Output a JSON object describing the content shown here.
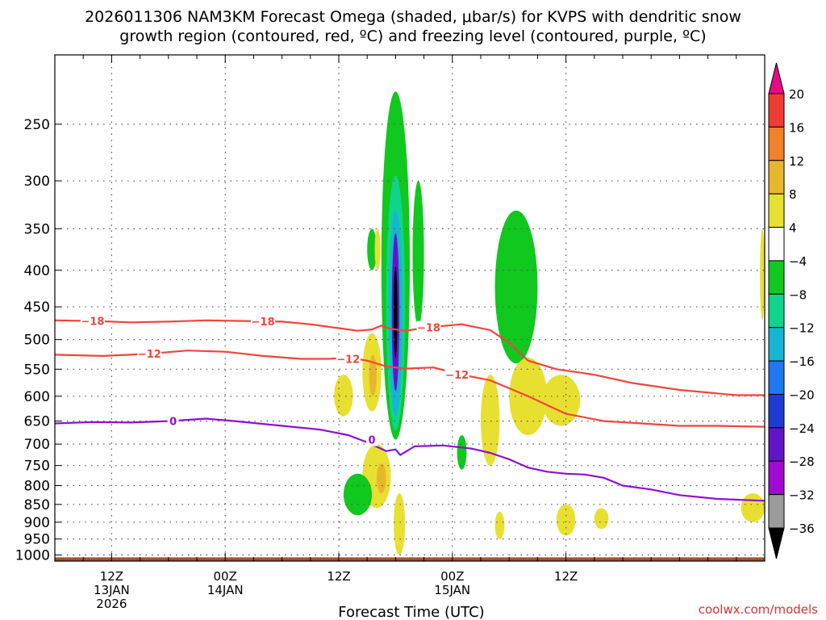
{
  "chart_data": {
    "type": "heatmap",
    "title_line1": "2026011306 NAM3KM Forecast Omega (shaded, μbar/s) for KVPS with dendritic snow",
    "title_line2": "growth region (contoured, red, ºC) and freezing level (contoured, purple, ºC)",
    "xlabel": "Forecast Time (UTC)",
    "credit": "coolwx.com/models",
    "y_axis": {
      "scale": "log-pressure",
      "reversed": true,
      "ylim": [
        1020,
        200
      ],
      "ticks": [
        "250",
        "300",
        "350",
        "400",
        "450",
        "500",
        "550",
        "600",
        "650",
        "700",
        "750",
        "800",
        "850",
        "900",
        "950",
        "1000"
      ],
      "tick_values": [
        250,
        300,
        350,
        400,
        450,
        500,
        550,
        600,
        650,
        700,
        750,
        800,
        850,
        900,
        950,
        1000
      ]
    },
    "x_axis": {
      "xlim_hours": [
        0,
        75
      ],
      "ticks": [
        {
          "hour": 6,
          "lines": [
            "12Z",
            "13JAN",
            "2026"
          ]
        },
        {
          "hour": 18,
          "lines": [
            "00Z",
            "14JAN"
          ]
        },
        {
          "hour": 30,
          "lines": [
            "12Z"
          ]
        },
        {
          "hour": 42,
          "lines": [
            "00Z",
            "15JAN"
          ]
        },
        {
          "hour": 54,
          "lines": [
            "12Z"
          ]
        }
      ],
      "minor_hours": [
        3,
        9,
        12,
        15,
        21,
        24,
        27,
        33,
        36,
        39,
        45,
        48,
        51,
        57,
        60,
        63,
        66,
        69,
        72
      ]
    },
    "grid": "dotted",
    "colorbar": {
      "levels": [
        {
          "label": "20",
          "color": "#e60a84"
        },
        {
          "label": "16",
          "color": "#f03c32"
        },
        {
          "label": "12",
          "color": "#f0822a"
        },
        {
          "label": "8",
          "color": "#e8b62c"
        },
        {
          "label": "4",
          "color": "#e8e030"
        },
        {
          "label": "−4",
          "color": "#ffffff"
        },
        {
          "label": "−8",
          "color": "#10c81e"
        },
        {
          "label": "−12",
          "color": "#10d48c"
        },
        {
          "label": "−16",
          "color": "#18b4d4"
        },
        {
          "label": "−20",
          "color": "#1e78f0"
        },
        {
          "label": "−24",
          "color": "#1e3cd2"
        },
        {
          "label": "−28",
          "color": "#6414c8"
        },
        {
          "label": "−32",
          "color": "#a00ad2"
        },
        {
          "label": "−36",
          "color": "#9b9b9b"
        },
        {
          "label": "",
          "color": "#000000"
        }
      ]
    },
    "contours": [
      {
        "label": "−18",
        "color": "#f0463c",
        "points": [
          [
            0,
            470
          ],
          [
            4,
            471
          ],
          [
            8,
            473
          ],
          [
            12,
            472
          ],
          [
            16,
            470
          ],
          [
            20,
            471
          ],
          [
            24,
            472
          ],
          [
            27,
            476
          ],
          [
            30,
            482
          ],
          [
            32,
            486
          ],
          [
            33.5,
            484
          ],
          [
            34.5,
            478
          ],
          [
            35.5,
            483
          ],
          [
            37,
            486
          ],
          [
            40,
            480
          ],
          [
            43,
            476
          ],
          [
            46,
            485
          ],
          [
            48,
            505
          ],
          [
            49,
            520
          ],
          [
            50,
            535
          ],
          [
            53,
            550
          ],
          [
            57,
            560
          ],
          [
            61,
            575
          ],
          [
            66,
            588
          ],
          [
            72,
            598
          ],
          [
            75,
            598
          ]
        ],
        "label_at": [
          [
            4,
            471
          ],
          [
            22,
            471.5
          ],
          [
            39.5,
            481
          ]
        ]
      },
      {
        "label": "−12",
        "color": "#f0463c",
        "points": [
          [
            0,
            525
          ],
          [
            5,
            527
          ],
          [
            8,
            525
          ],
          [
            11,
            522
          ],
          [
            14,
            518
          ],
          [
            18,
            520
          ],
          [
            22,
            527
          ],
          [
            26,
            532
          ],
          [
            29,
            532
          ],
          [
            31,
            530
          ],
          [
            33,
            535
          ],
          [
            35,
            545
          ],
          [
            37,
            549
          ],
          [
            40,
            547
          ],
          [
            43,
            560
          ],
          [
            46,
            570
          ],
          [
            50,
            600
          ],
          [
            54,
            635
          ],
          [
            58,
            650
          ],
          [
            62,
            655
          ],
          [
            66,
            660
          ],
          [
            70,
            660
          ],
          [
            75,
            662
          ]
        ],
        "label_at": [
          [
            10,
            523
          ],
          [
            31,
            532
          ],
          [
            42.5,
            560
          ]
        ]
      },
      {
        "label": "0",
        "color": "#9010d0",
        "points": [
          [
            0,
            655
          ],
          [
            4,
            652
          ],
          [
            8,
            653
          ],
          [
            12,
            650
          ],
          [
            16,
            645
          ],
          [
            19,
            650
          ],
          [
            22,
            656
          ],
          [
            25,
            662
          ],
          [
            28,
            668
          ],
          [
            31,
            680
          ],
          [
            33,
            696
          ],
          [
            35,
            716
          ],
          [
            36,
            712
          ],
          [
            36.5,
            725
          ],
          [
            38,
            705
          ],
          [
            41,
            703
          ],
          [
            44,
            710
          ],
          [
            46,
            720
          ],
          [
            48,
            735
          ],
          [
            50,
            755
          ],
          [
            52,
            765
          ],
          [
            54,
            770
          ],
          [
            56,
            772
          ],
          [
            58,
            780
          ],
          [
            60,
            800
          ],
          [
            63,
            810
          ],
          [
            66,
            825
          ],
          [
            70,
            835
          ],
          [
            75,
            840
          ]
        ],
        "label_at": [
          [
            12.5,
            650
          ],
          [
            33.5,
            690
          ]
        ]
      }
    ],
    "shaded_regions": [
      {
        "color": "#10c81e",
        "hours": [
          34.5,
          37.5
        ],
        "p": [
          225,
          690
        ]
      },
      {
        "color": "#10d48c",
        "hours": [
          35,
          37
        ],
        "p": [
          295,
          670
        ]
      },
      {
        "color": "#18b4d4",
        "hours": [
          35.3,
          36.7
        ],
        "p": [
          330,
          640
        ]
      },
      {
        "color": "#6414c8",
        "hours": [
          35.6,
          36.4
        ],
        "p": [
          355,
          590
        ]
      },
      {
        "color": "#000000",
        "hours": [
          35.8,
          36.2
        ],
        "p": [
          395,
          530
        ]
      },
      {
        "color": "#e8e030",
        "hours": [
          32.5,
          34.5
        ],
        "p": [
          490,
          630
        ]
      },
      {
        "color": "#e8b62c",
        "hours": [
          33.2,
          34.0
        ],
        "p": [
          525,
          600
        ]
      },
      {
        "color": "#e8e030",
        "hours": [
          29.5,
          31.5
        ],
        "p": [
          560,
          640
        ]
      },
      {
        "color": "#e8e030",
        "hours": [
          32.5,
          35.5
        ],
        "p": [
          700,
          860
        ]
      },
      {
        "color": "#e8b62c",
        "hours": [
          34.0,
          35.0
        ],
        "p": [
          745,
          820
        ]
      },
      {
        "color": "#e8e030",
        "hours": [
          35.8,
          37.0
        ],
        "p": [
          820,
          1000
        ]
      },
      {
        "color": "#10c81e",
        "hours": [
          30.5,
          33.5
        ],
        "p": [
          770,
          880
        ]
      },
      {
        "color": "#10c81e",
        "hours": [
          33.0,
          34.0
        ],
        "p": [
          350,
          400
        ]
      },
      {
        "color": "#e8e030",
        "hours": [
          33.8,
          34.4
        ],
        "p": [
          350,
          400
        ]
      },
      {
        "color": "#10c81e",
        "hours": [
          37.8,
          39.0
        ],
        "p": [
          300,
          480
        ]
      },
      {
        "color": "#10c81e",
        "hours": [
          42.5,
          43.5
        ],
        "p": [
          680,
          760
        ]
      },
      {
        "color": "#10c81e",
        "hours": [
          46.5,
          51.0
        ],
        "p": [
          330,
          540
        ]
      },
      {
        "color": "#e8e030",
        "hours": [
          45,
          47
        ],
        "p": [
          560,
          750
        ]
      },
      {
        "color": "#e8e030",
        "hours": [
          48,
          52
        ],
        "p": [
          530,
          680
        ]
      },
      {
        "color": "#e8e030",
        "hours": [
          51.5,
          55.5
        ],
        "p": [
          560,
          660
        ]
      },
      {
        "color": "#e8e030",
        "hours": [
          46.5,
          47.5
        ],
        "p": [
          870,
          950
        ]
      },
      {
        "color": "#e8e030",
        "hours": [
          53,
          55
        ],
        "p": [
          850,
          940
        ]
      },
      {
        "color": "#e8e030",
        "hours": [
          57,
          58.5
        ],
        "p": [
          860,
          920
        ]
      },
      {
        "color": "#e8e030",
        "hours": [
          72.5,
          75
        ],
        "p": [
          820,
          900
        ]
      },
      {
        "color": "#e8e030",
        "hours": [
          74.5,
          75
        ],
        "p": [
          350,
          470
        ]
      }
    ],
    "terrain": {
      "color": "#a0522d",
      "p_top": 1008
    }
  }
}
